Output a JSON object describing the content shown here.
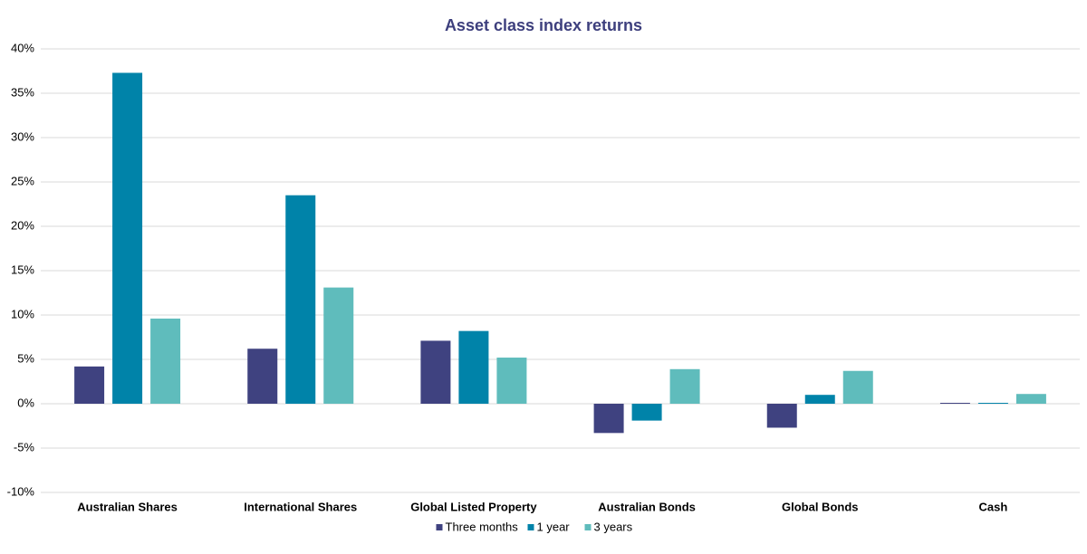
{
  "chart_data": {
    "type": "bar",
    "title": "Asset class index returns",
    "categories": [
      "Australian Shares",
      "International Shares",
      "Global Listed Property",
      "Australian Bonds",
      "Global Bonds",
      "Cash"
    ],
    "series": [
      {
        "name": "Three months",
        "color": "#3f4280",
        "values": [
          4.2,
          6.2,
          7.1,
          -3.3,
          -2.7,
          0.1
        ]
      },
      {
        "name": "1 year",
        "color": "#0083a9",
        "values": [
          37.3,
          23.5,
          8.2,
          -1.9,
          1.0,
          0.1
        ]
      },
      {
        "name": "3 years",
        "color": "#5fbcbc",
        "values": [
          9.6,
          13.1,
          5.2,
          3.9,
          3.7,
          1.1
        ]
      }
    ],
    "ylim": [
      -10,
      40
    ],
    "yticks": [
      {
        "value": -10,
        "label": "-10%"
      },
      {
        "value": -5,
        "label": "-5%"
      },
      {
        "value": 0,
        "label": "0%"
      },
      {
        "value": 5,
        "label": "5%"
      },
      {
        "value": 10,
        "label": "10%"
      },
      {
        "value": 15,
        "label": "15%"
      },
      {
        "value": 20,
        "label": "20%"
      },
      {
        "value": 25,
        "label": "25%"
      },
      {
        "value": 30,
        "label": "30%"
      },
      {
        "value": 35,
        "label": "35%"
      },
      {
        "value": 40,
        "label": "40%"
      }
    ],
    "grid": true,
    "legend": "bottom"
  }
}
